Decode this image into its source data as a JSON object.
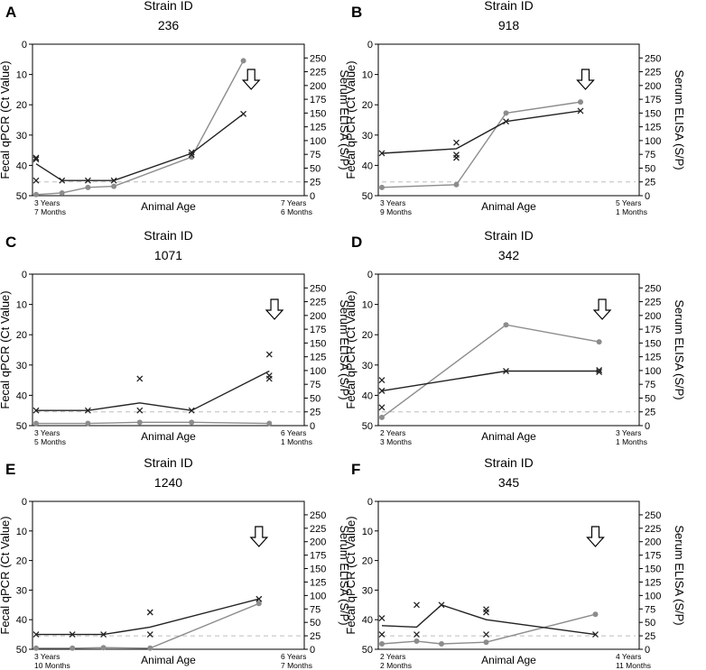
{
  "figure": {
    "shared": {
      "xlabel": "Animal Age",
      "ylabel_left": "Fecal qPCR (Ct Value)",
      "ylabel_right": "Serum ELISA (S/P)",
      "ylim_left": [
        0,
        50
      ],
      "ylim_right": [
        0,
        275
      ],
      "left_ticks": [
        0,
        10,
        20,
        30,
        40,
        50
      ],
      "right_ticks": [
        0,
        25,
        50,
        75,
        100,
        125,
        150,
        175,
        200,
        225,
        250
      ],
      "dashed_line_sp": 25,
      "colors": {
        "qpcr": "#222222",
        "elisa": "#8c8c8c",
        "cutoff": "#bdbdbd"
      }
    },
    "panels": [
      {
        "letter": "A",
        "strain_label": "Strain ID",
        "strain_id": "236",
        "age_start": [
          "3 Years",
          "7 Months"
        ],
        "age_end": [
          "7 Years",
          "6 Months"
        ],
        "x_span": 10,
        "qpcr_line": [
          [
            0,
            39.5
          ],
          [
            1,
            45
          ],
          [
            2,
            45
          ],
          [
            3,
            45
          ],
          [
            6,
            36
          ],
          [
            8,
            23
          ]
        ],
        "qpcr_points": [
          [
            0,
            37.5
          ],
          [
            0,
            38
          ],
          [
            0,
            45
          ],
          [
            1,
            45
          ],
          [
            2,
            45
          ],
          [
            3,
            45
          ],
          [
            6,
            35.7
          ],
          [
            6,
            36.5
          ],
          [
            8,
            23
          ]
        ],
        "elisa": [
          [
            0,
            2
          ],
          [
            1,
            5
          ],
          [
            2,
            15
          ],
          [
            3,
            17
          ],
          [
            6,
            70
          ],
          [
            8,
            245
          ]
        ],
        "arrow_x": 8.3
      },
      {
        "letter": "B",
        "strain_label": "Strain ID",
        "strain_id": "918",
        "age_start": [
          "3 Years",
          "9 Months"
        ],
        "age_end": [
          "5 Years",
          "1 Months"
        ],
        "x_span": 10,
        "qpcr_line": [
          [
            0,
            36
          ],
          [
            3,
            34.5
          ],
          [
            5,
            25.5
          ],
          [
            8,
            22
          ]
        ],
        "qpcr_points": [
          [
            0,
            36
          ],
          [
            3,
            32.5
          ],
          [
            3,
            36.5
          ],
          [
            3,
            37.5
          ],
          [
            5,
            25.5
          ],
          [
            8,
            22
          ]
        ],
        "elisa": [
          [
            0,
            15
          ],
          [
            3,
            20
          ],
          [
            5,
            150
          ],
          [
            8,
            170
          ]
        ],
        "arrow_x": 8.2
      },
      {
        "letter": "C",
        "strain_label": "Strain ID",
        "strain_id": "1071",
        "age_start": [
          "3 Years",
          "5 Months"
        ],
        "age_end": [
          "6 Years",
          "1 Months"
        ],
        "x_span": 10,
        "qpcr_line": [
          [
            0,
            45
          ],
          [
            2,
            45
          ],
          [
            4,
            42.5
          ],
          [
            6,
            45
          ],
          [
            9,
            32
          ]
        ],
        "qpcr_points": [
          [
            0,
            45
          ],
          [
            2,
            45
          ],
          [
            4,
            34.5
          ],
          [
            4,
            45
          ],
          [
            6,
            45
          ],
          [
            9,
            26.5
          ],
          [
            9,
            33.5
          ],
          [
            9,
            34.5
          ]
        ],
        "elisa": [
          [
            0,
            4
          ],
          [
            2,
            4
          ],
          [
            4,
            6
          ],
          [
            6,
            6
          ],
          [
            9,
            4
          ]
        ],
        "arrow_x": 9.2
      },
      {
        "letter": "D",
        "strain_label": "Strain ID",
        "strain_id": "342",
        "age_start": [
          "2 Years",
          "3 Months"
        ],
        "age_end": [
          "3 Years",
          "1 Months"
        ],
        "x_span": 8,
        "qpcr_line": [
          [
            0,
            38.5
          ],
          [
            4,
            32
          ],
          [
            7,
            32
          ]
        ],
        "qpcr_points": [
          [
            0,
            35
          ],
          [
            0,
            38.5
          ],
          [
            0,
            44
          ],
          [
            4,
            32
          ],
          [
            7,
            31.7
          ],
          [
            7,
            32.3
          ]
        ],
        "elisa": [
          [
            0,
            15
          ],
          [
            4,
            183
          ],
          [
            7,
            152
          ]
        ],
        "arrow_x": 7.1
      },
      {
        "letter": "E",
        "strain_label": "Strain ID",
        "strain_id": "1240",
        "age_start": [
          "3 Years",
          "10 Months"
        ],
        "age_end": [
          "6 Years",
          "7 Months"
        ],
        "x_span": 10,
        "qpcr_line": [
          [
            0,
            45
          ],
          [
            1.4,
            45
          ],
          [
            2.6,
            45
          ],
          [
            4.4,
            42.5
          ],
          [
            8.6,
            33
          ]
        ],
        "qpcr_points": [
          [
            0,
            45
          ],
          [
            1.4,
            45
          ],
          [
            2.6,
            45
          ],
          [
            4.4,
            37.5
          ],
          [
            4.4,
            45
          ],
          [
            8.6,
            33
          ]
        ],
        "elisa": [
          [
            0,
            2
          ],
          [
            1.4,
            2
          ],
          [
            2.6,
            3
          ],
          [
            4.4,
            2
          ],
          [
            8.6,
            85
          ]
        ],
        "arrow_x": 8.6
      },
      {
        "letter": "F",
        "strain_label": "Strain ID",
        "strain_id": "345",
        "age_start": [
          "2 Years",
          "2 Months"
        ],
        "age_end": [
          "4 Years",
          "11 Months"
        ],
        "x_span": 10,
        "qpcr_line": [
          [
            0,
            42
          ],
          [
            1.4,
            42.5
          ],
          [
            2.4,
            35
          ],
          [
            4.2,
            40
          ],
          [
            8.6,
            45
          ]
        ],
        "qpcr_points": [
          [
            0,
            39.5
          ],
          [
            0,
            45
          ],
          [
            1.4,
            35
          ],
          [
            1.4,
            45
          ],
          [
            2.4,
            35
          ],
          [
            4.2,
            36.5
          ],
          [
            4.2,
            37.5
          ],
          [
            4.2,
            45
          ],
          [
            8.6,
            45
          ]
        ],
        "elisa": [
          [
            0,
            10
          ],
          [
            1.4,
            15
          ],
          [
            2.4,
            10
          ],
          [
            4.2,
            13
          ],
          [
            8.6,
            65
          ]
        ],
        "arrow_x": 8.6
      }
    ]
  }
}
